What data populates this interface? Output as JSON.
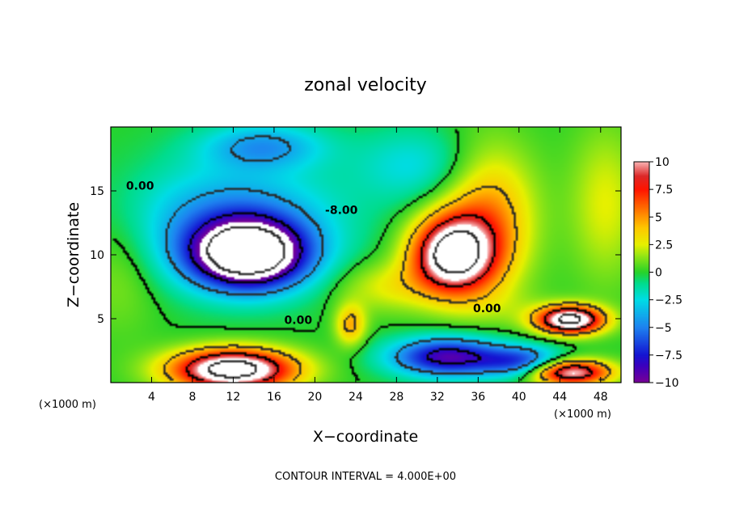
{
  "chart_data": {
    "type": "heatmap",
    "title": "zonal velocity",
    "xlabel": "X−coordinate",
    "ylabel": "Z−coordinate",
    "x_unit_left": "(×1000 m)",
    "x_unit_right": "(×1000 m)",
    "xlim": [
      0,
      50
    ],
    "ylim": [
      0,
      20
    ],
    "x_ticks": [
      4,
      8,
      12,
      16,
      20,
      24,
      28,
      32,
      36,
      40,
      44,
      48
    ],
    "y_ticks": [
      5,
      10,
      15
    ],
    "colorbar": {
      "range": [
        -10,
        10
      ],
      "ticks": [
        10,
        7.5,
        5,
        2.5,
        0,
        -2.5,
        -5,
        -7.5,
        -10
      ],
      "tick_labels": [
        "10",
        "7.5",
        "5",
        "2.5",
        "0",
        "−2.5",
        "−5",
        "−7.5",
        "−10"
      ]
    },
    "contour_labels": [
      {
        "text": "0.00",
        "x": 1.5,
        "z": 15.1
      },
      {
        "text": "-8.00",
        "x": 21.0,
        "z": 13.2
      },
      {
        "text": "0.00",
        "x": 17.0,
        "z": 4.6
      },
      {
        "text": "0.00",
        "x": 35.5,
        "z": 5.5
      }
    ],
    "features": [
      {
        "x": 13.5,
        "z": 10.0,
        "sx": 5.5,
        "sz": 2.6,
        "v": -14
      },
      {
        "x": 12.0,
        "z": 12.5,
        "sx": 10.0,
        "sz": 4.5,
        "v": -5
      },
      {
        "x": 15.0,
        "z": 18.5,
        "sx": 6.0,
        "sz": 1.8,
        "v": -4
      },
      {
        "x": 33.5,
        "z": 10.0,
        "sx": 4.0,
        "sz": 3.0,
        "v": 13
      },
      {
        "x": 37.0,
        "z": 13.0,
        "sx": 4.5,
        "sz": 5.5,
        "v": 5
      },
      {
        "x": 12.0,
        "z": 1.0,
        "sx": 6.0,
        "sz": 1.6,
        "v": 14
      },
      {
        "x": 23.5,
        "z": 4.5,
        "sx": 1.5,
        "sz": 1.6,
        "v": 4.5
      },
      {
        "x": 45.0,
        "z": 4.9,
        "sx": 3.3,
        "sz": 1.1,
        "v": 13
      },
      {
        "x": 45.0,
        "z": 0.8,
        "sx": 4.0,
        "sz": 1.0,
        "v": 11
      },
      {
        "x": 33.0,
        "z": 2.0,
        "sx": 5.5,
        "sz": 1.5,
        "v": -9
      },
      {
        "x": 40.5,
        "z": 1.6,
        "sx": 4.0,
        "sz": 1.2,
        "v": -6
      },
      {
        "x": 27.0,
        "z": 7.5,
        "sx": 5.0,
        "sz": 2.0,
        "v": 2.5
      },
      {
        "x": 1.0,
        "z": 9.0,
        "sx": 4.0,
        "sz": 5.0,
        "v": 1.5
      },
      {
        "x": 48.5,
        "z": 14.0,
        "sx": 3.5,
        "sz": 6.0,
        "v": 2.5
      },
      {
        "x": 30.0,
        "z": 17.0,
        "sx": 6.0,
        "sz": 3.0,
        "v": -2.5
      },
      {
        "x": 38.0,
        "z": 6.0,
        "sx": 5.0,
        "sz": 1.5,
        "v": 0.8
      }
    ]
  },
  "footer": {
    "contour_interval": "CONTOUR INTERVAL = 4.000E+00"
  }
}
